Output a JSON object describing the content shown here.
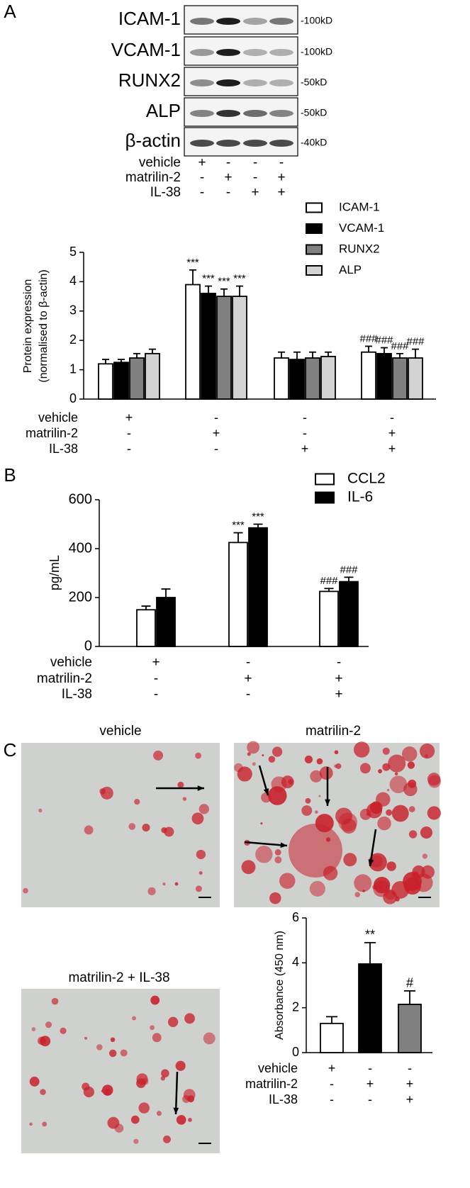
{
  "panels": [
    "A",
    "B",
    "C"
  ],
  "blot": {
    "proteins": [
      "ICAM-1",
      "VCAM-1",
      "RUNX2",
      "ALP",
      "β-actin"
    ],
    "sizes": [
      "-100kD",
      "-100kD",
      "-50kD",
      "-50kD",
      "-40kD"
    ],
    "conditions": [
      {
        "label": "vehicle",
        "signs": [
          "+",
          "-",
          "-",
          "-"
        ]
      },
      {
        "label": "matrilin-2",
        "signs": [
          "-",
          "+",
          "-",
          "+"
        ]
      },
      {
        "label": "IL-38",
        "signs": [
          "-",
          "-",
          "+",
          "+"
        ]
      }
    ]
  },
  "images": {
    "titles": [
      "vehicle",
      "matrilin-2",
      "matrilin-2 + IL-38"
    ]
  },
  "chart_data": [
    {
      "type": "bar",
      "ylabel": [
        "Protein expression",
        "(normalised to β-actin)"
      ],
      "ylim": [
        0,
        5
      ],
      "yticks": [
        0,
        1,
        2,
        3,
        4,
        5
      ],
      "series": [
        {
          "name": "ICAM-1",
          "color": "#ffffff",
          "values": [
            1.2,
            3.9,
            1.4,
            1.6
          ],
          "errors": [
            0.15,
            0.5,
            0.2,
            0.2
          ],
          "annotations": [
            null,
            "***",
            null,
            "###"
          ]
        },
        {
          "name": "VCAM-1",
          "color": "#000000",
          "values": [
            1.25,
            3.6,
            1.35,
            1.55
          ],
          "errors": [
            0.1,
            0.25,
            0.25,
            0.2
          ],
          "annotations": [
            null,
            "***",
            null,
            "###"
          ]
        },
        {
          "name": "RUNX2",
          "color": "#808080",
          "values": [
            1.4,
            3.5,
            1.4,
            1.4
          ],
          "errors": [
            0.15,
            0.25,
            0.2,
            0.15
          ],
          "annotations": [
            null,
            "***",
            null,
            "###"
          ]
        },
        {
          "name": "ALP",
          "color": "#d3d3d3",
          "values": [
            1.55,
            3.5,
            1.45,
            1.4
          ],
          "errors": [
            0.15,
            0.35,
            0.15,
            0.3
          ],
          "annotations": [
            null,
            "***",
            null,
            "###"
          ]
        }
      ],
      "conditions": [
        {
          "label": "vehicle",
          "signs": [
            "+",
            "-",
            "-",
            "-"
          ]
        },
        {
          "label": "matrilin-2",
          "signs": [
            "-",
            "+",
            "-",
            "+"
          ]
        },
        {
          "label": "IL-38",
          "signs": [
            "-",
            "-",
            "+",
            "+"
          ]
        }
      ]
    },
    {
      "type": "bar",
      "ylabel": [
        "pg/mL"
      ],
      "ylim": [
        0,
        600
      ],
      "yticks": [
        0,
        200,
        400,
        600
      ],
      "series": [
        {
          "name": "CCL2",
          "color": "#ffffff",
          "values": [
            150,
            425,
            225
          ],
          "errors": [
            15,
            40,
            12
          ],
          "annotations": [
            null,
            "***",
            "###"
          ]
        },
        {
          "name": "IL-6",
          "color": "#000000",
          "values": [
            200,
            485,
            265
          ],
          "errors": [
            35,
            15,
            18
          ],
          "annotations": [
            null,
            "***",
            "###"
          ]
        }
      ],
      "conditions": [
        {
          "label": "vehicle",
          "signs": [
            "+",
            "-",
            "-"
          ]
        },
        {
          "label": "matrilin-2",
          "signs": [
            "-",
            "+",
            "+"
          ]
        },
        {
          "label": "IL-38",
          "signs": [
            "-",
            "-",
            "+"
          ]
        }
      ]
    },
    {
      "type": "bar",
      "ylabel": [
        "Absorbance (450 nm)"
      ],
      "ylim": [
        0,
        6
      ],
      "yticks": [
        0,
        2,
        4,
        6
      ],
      "series": [
        {
          "colors": [
            "#ffffff",
            "#000000",
            "#808080"
          ],
          "values": [
            1.3,
            3.95,
            2.15
          ],
          "errors": [
            0.3,
            0.95,
            0.6
          ],
          "annotations": [
            null,
            "**",
            "#"
          ]
        }
      ],
      "conditions": [
        {
          "label": "vehicle",
          "signs": [
            "+",
            "-",
            "-"
          ]
        },
        {
          "label": "matrilin-2",
          "signs": [
            "-",
            "+",
            "+"
          ]
        },
        {
          "label": "IL-38",
          "signs": [
            "-",
            "-",
            "+"
          ]
        }
      ]
    }
  ]
}
